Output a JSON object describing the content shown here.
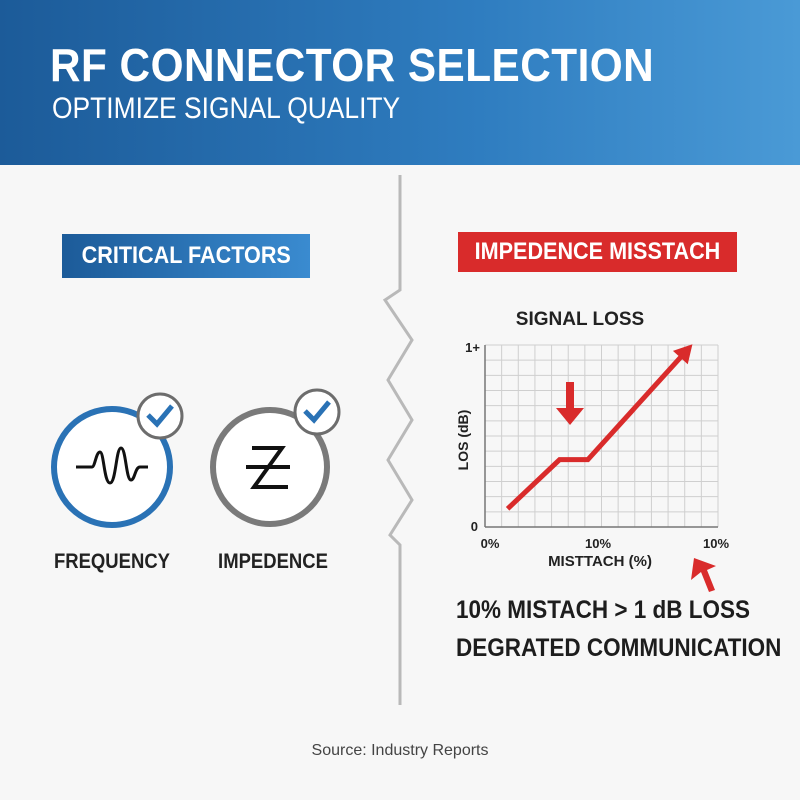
{
  "header": {
    "title": "RF CONNECTOR SELECTION",
    "subtitle": "OPTIMIZE SIGNAL QUALITY"
  },
  "left": {
    "badge": "CRITICAL FACTORS",
    "factors": [
      {
        "label": "FREQUENCY",
        "icon": "sine-wave-icon",
        "checked": true
      },
      {
        "label": "IMPEDENCE",
        "icon": "z-impedance-icon",
        "checked": true
      }
    ]
  },
  "right": {
    "badge": "IMPEDENCE MISSTACH",
    "notes": [
      "10% MISTACH > 1 dB LOSS",
      "DEGRATED COMMUNICATION"
    ]
  },
  "chart_data": {
    "type": "line",
    "title": "SIGNAL LOSS",
    "xlabel": "MISTTACH (%)",
    "ylabel": "LOS (dB)",
    "x_tick_labels": [
      "0%",
      "10%",
      "10%"
    ],
    "y_tick_labels": [
      "0",
      "1+"
    ],
    "ylim": [
      0,
      1
    ],
    "grid": true,
    "series": [
      {
        "x": [
          2.0,
          6.6,
          9.1,
          18.0
        ],
        "y": [
          0.1,
          0.37,
          0.37,
          0.98
        ]
      }
    ],
    "color": "#d92b2b"
  },
  "colors": {
    "blue": "#2a72b5",
    "red": "#d92b2b"
  },
  "source": "Source: Industry Reports"
}
